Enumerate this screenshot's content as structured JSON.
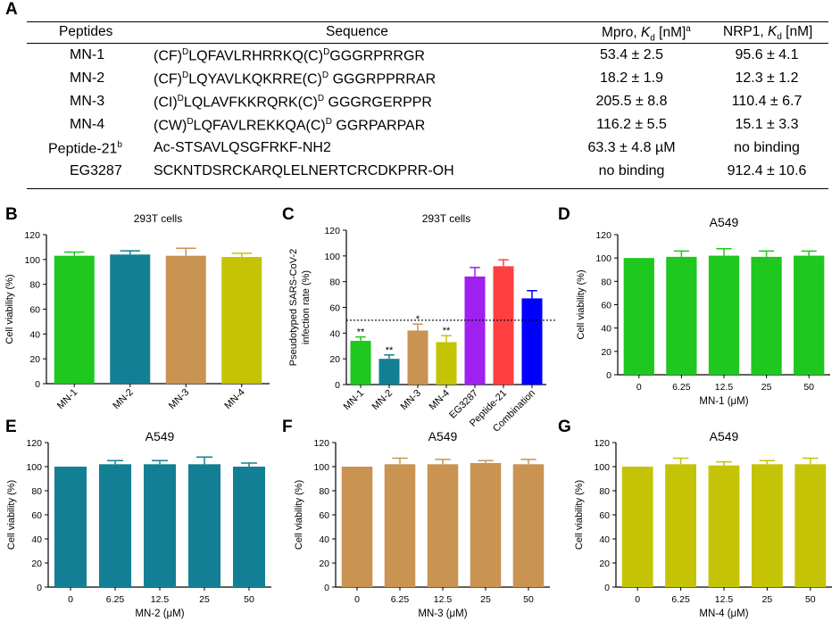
{
  "panel_letters": {
    "A": "A",
    "B": "B",
    "C": "C",
    "D": "D",
    "E": "E",
    "F": "F",
    "G": "G"
  },
  "table": {
    "headers": {
      "peptides": "Peptides",
      "sequence": "Sequence",
      "mpro_prefix": "Mpro, ",
      "mpro_k": "K",
      "mpro_sub": "d",
      "mpro_unit": " [nM]",
      "mpro_sup": "a",
      "nrp1_prefix": "NRP1, ",
      "nrp1_k": "K",
      "nrp1_sub": "d",
      "nrp1_unit": " [nM]"
    },
    "rows": [
      {
        "name": "MN-1",
        "name_sup": "",
        "seq": [
          [
            "(CF)",
            ""
          ],
          [
            "D",
            "sup"
          ],
          [
            "LQFAVLRHRRKQ(C)",
            ""
          ],
          [
            "D",
            "sup"
          ],
          [
            "GGGRPRRGR",
            ""
          ]
        ],
        "mpro": "53.4 ± 2.5",
        "nrp1": "95.6 ± 4.1"
      },
      {
        "name": "MN-2",
        "name_sup": "",
        "seq": [
          [
            "(CF)",
            ""
          ],
          [
            "D",
            "sup"
          ],
          [
            "LQYAVLKQKRRE(C)",
            ""
          ],
          [
            "D",
            "sup"
          ],
          [
            " GGGRPPRRAR",
            ""
          ]
        ],
        "mpro": "18.2 ± 1.9",
        "nrp1": "12.3 ± 1.2"
      },
      {
        "name": "MN-3",
        "name_sup": "",
        "seq": [
          [
            "(CI)",
            ""
          ],
          [
            "D",
            "sup"
          ],
          [
            "LQLAVFKKRQRK(C)",
            ""
          ],
          [
            "D",
            "sup"
          ],
          [
            " GGGRGERPPR",
            ""
          ]
        ],
        "mpro": "205.5 ± 8.8",
        "nrp1": "110.4 ± 6.7"
      },
      {
        "name": "MN-4",
        "name_sup": "",
        "seq": [
          [
            "(CW)",
            ""
          ],
          [
            "D",
            "sup"
          ],
          [
            "LQFAVLREKKQA(C)",
            ""
          ],
          [
            "D",
            "sup"
          ],
          [
            " GGRPARPAR",
            ""
          ]
        ],
        "mpro": "116.2 ± 5.5",
        "nrp1": "15.1 ± 3.3"
      },
      {
        "name": "Peptide-21",
        "name_sup": "b",
        "seq": [
          [
            "Ac-STSAVLQSGFRKF-NH2",
            ""
          ]
        ],
        "mpro": "63.3 ± 4.8 µM",
        "nrp1": "no binding"
      },
      {
        "name": "EG3287",
        "name_sup": "",
        "seq": [
          [
            "SCKNTDSRCKARQLELNERTCRCDKPRR-OH",
            ""
          ]
        ],
        "mpro": "no binding",
        "nrp1": "912.4 ± 10.6"
      }
    ]
  },
  "chart_data": [
    {
      "panel": "B",
      "type": "bar",
      "title": "293T cells",
      "xlabel": "",
      "ylabel": "Cell viability (%)",
      "categories": [
        "MN-1",
        "MN-2",
        "MN-3",
        "MN-4"
      ],
      "values": [
        103,
        104,
        103,
        102
      ],
      "errors": [
        3,
        3,
        6,
        3
      ],
      "colors": [
        "#1ec81e",
        "#137f94",
        "#c99352",
        "#c5c305"
      ],
      "ylim": [
        0,
        120
      ],
      "yticks": [
        0,
        20,
        40,
        60,
        80,
        100,
        120
      ],
      "xrot": true
    },
    {
      "panel": "C",
      "type": "bar",
      "title": "293T cells",
      "xlabel": "",
      "ylabel": "Pseudotyped SARS-CoV-2",
      "ylabel2": "infection rate (%)",
      "categories": [
        "MN-1",
        "MN-2",
        "MN-3",
        "MN-4",
        "EG3287",
        "Peptide-21",
        "Combination"
      ],
      "values": [
        34,
        20,
        42,
        33,
        84,
        92,
        67
      ],
      "errors": [
        3,
        3,
        5,
        5,
        7,
        5,
        6
      ],
      "annotations": [
        "**",
        "**",
        "*",
        "**",
        "",
        "",
        ""
      ],
      "colors": [
        "#1ec81e",
        "#137f94",
        "#c99352",
        "#c5c305",
        "#a020f0",
        "#ff4040",
        "#0000ff"
      ],
      "ylim": [
        0,
        120
      ],
      "yticks": [
        0,
        20,
        40,
        60,
        80,
        100,
        120
      ],
      "reference_line": 50,
      "xrot": true
    },
    {
      "panel": "D",
      "type": "bar",
      "title": "A549",
      "xlabel": "MN-1 (μM)",
      "ylabel": "Cell viability (%)",
      "categories": [
        "0",
        "6.25",
        "12.5",
        "25",
        "50"
      ],
      "values": [
        100,
        101,
        102,
        101,
        102
      ],
      "errors": [
        0,
        5,
        6,
        5,
        4
      ],
      "colors": [
        "#1ec81e",
        "#1ec81e",
        "#1ec81e",
        "#1ec81e",
        "#1ec81e"
      ],
      "ylim": [
        0,
        120
      ],
      "yticks": [
        0,
        20,
        40,
        60,
        80,
        100,
        120
      ],
      "xrot": false
    },
    {
      "panel": "E",
      "type": "bar",
      "title": "A549",
      "xlabel": "MN-2 (μM)",
      "ylabel": "Cell viability (%)",
      "categories": [
        "0",
        "6.25",
        "12.5",
        "25",
        "50"
      ],
      "values": [
        100,
        102,
        102,
        102,
        100
      ],
      "errors": [
        0,
        3,
        3,
        6,
        3
      ],
      "colors": [
        "#137f94",
        "#137f94",
        "#137f94",
        "#137f94",
        "#137f94"
      ],
      "ylim": [
        0,
        120
      ],
      "yticks": [
        0,
        20,
        40,
        60,
        80,
        100,
        120
      ],
      "xrot": false
    },
    {
      "panel": "F",
      "type": "bar",
      "title": "A549",
      "xlabel": "MN-3 (μM)",
      "ylabel": "Cell viability (%)",
      "categories": [
        "0",
        "6.25",
        "12.5",
        "25",
        "50"
      ],
      "values": [
        100,
        102,
        102,
        103,
        102
      ],
      "errors": [
        0,
        5,
        4,
        2,
        4
      ],
      "colors": [
        "#c99352",
        "#c99352",
        "#c99352",
        "#c99352",
        "#c99352"
      ],
      "ylim": [
        0,
        120
      ],
      "yticks": [
        0,
        20,
        40,
        60,
        80,
        100,
        120
      ],
      "xrot": false
    },
    {
      "panel": "G",
      "type": "bar",
      "title": "A549",
      "xlabel": "MN-4 (μM)",
      "ylabel": "Cell viability (%)",
      "categories": [
        "0",
        "6.25",
        "12.5",
        "25",
        "50"
      ],
      "values": [
        100,
        102,
        101,
        102,
        102
      ],
      "errors": [
        0,
        5,
        3,
        3,
        5
      ],
      "colors": [
        "#c5c305",
        "#c5c305",
        "#c5c305",
        "#c5c305",
        "#c5c305"
      ],
      "ylim": [
        0,
        120
      ],
      "yticks": [
        0,
        20,
        40,
        60,
        80,
        100,
        120
      ],
      "xrot": false
    }
  ]
}
